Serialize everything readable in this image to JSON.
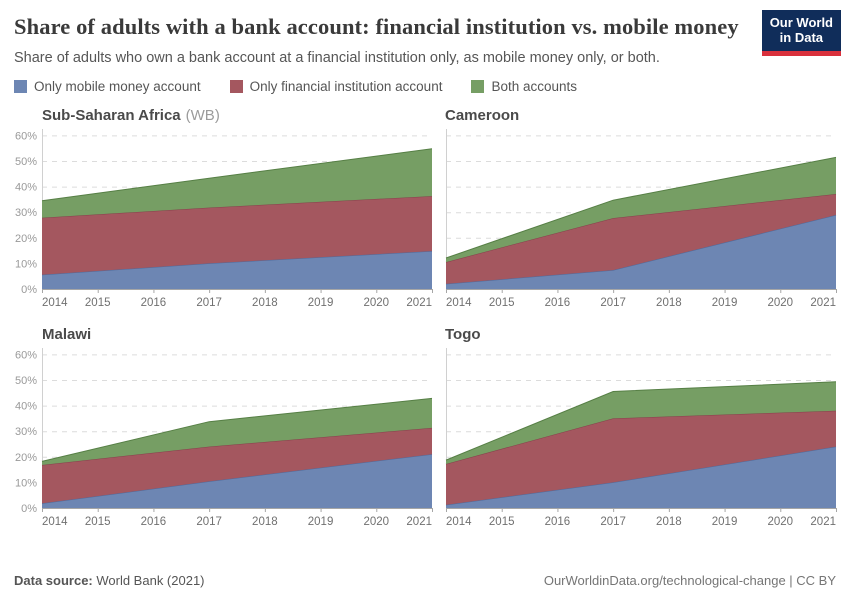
{
  "header": {
    "title": "Share of adults with a bank account: financial institution vs. mobile money",
    "subtitle": "Share of adults who own a bank account at a financial institution only, as mobile money only, or both."
  },
  "logo": {
    "line1": "Our World",
    "line2": "in Data"
  },
  "colors": {
    "mobile_fill": "#6d86b3",
    "mobile_stroke": "#4e6a9c",
    "fi_fill": "#a4575f",
    "fi_stroke": "#86404b",
    "both_fill": "#769e64",
    "both_stroke": "#567f45",
    "gridline": "#dcdcdc",
    "axis": "#a6a6a6",
    "axis_left": "#d0d0d0",
    "y_tick_text": "#999999",
    "x_tick_text": "#707070",
    "logo_bg": "#102d5a",
    "logo_bar": "#d9303c"
  },
  "legend": [
    {
      "id": "mobile",
      "label": "Only mobile money account",
      "color": "#6d86b3",
      "stroke": "#4e6a9c"
    },
    {
      "id": "fi",
      "label": "Only financial institution account",
      "color": "#a4575f",
      "stroke": "#86404b"
    },
    {
      "id": "both",
      "label": "Both accounts",
      "color": "#769e64",
      "stroke": "#567f45"
    }
  ],
  "axis": {
    "x_ticks": [
      2014,
      2015,
      2016,
      2017,
      2018,
      2019,
      2020,
      2021
    ],
    "y_ticks": [
      0,
      10,
      20,
      30,
      40,
      50,
      60
    ],
    "y_suffix": "%",
    "xlim": [
      2014,
      2021
    ],
    "ylim": [
      0,
      62.5
    ],
    "grid": "dashed"
  },
  "chart_data": [
    {
      "type": "area",
      "stacked": true,
      "title": "Sub-Saharan Africa",
      "title_suffix": "(WB)",
      "years": [
        2014,
        2017,
        2021
      ],
      "series": [
        {
          "name": "Only mobile money account",
          "values": [
            5.6,
            10.0,
            14.8
          ]
        },
        {
          "name": "Only financial institution account",
          "values": [
            22.2,
            21.8,
            21.5
          ]
        },
        {
          "name": "Both accounts",
          "values": [
            6.7,
            11.5,
            18.5
          ]
        }
      ]
    },
    {
      "type": "area",
      "stacked": true,
      "title": "Cameroon",
      "title_suffix": "",
      "years": [
        2014,
        2017,
        2021
      ],
      "series": [
        {
          "name": "Only mobile money account",
          "values": [
            2.0,
            7.4,
            28.9
          ]
        },
        {
          "name": "Only financial institution account",
          "values": [
            8.5,
            20.3,
            8.2
          ]
        },
        {
          "name": "Both accounts",
          "values": [
            1.6,
            7.0,
            14.3
          ]
        }
      ]
    },
    {
      "type": "area",
      "stacked": true,
      "title": "Malawi",
      "title_suffix": "",
      "years": [
        2014,
        2017,
        2021
      ],
      "series": [
        {
          "name": "Only mobile money account",
          "values": [
            1.8,
            10.4,
            21.0
          ]
        },
        {
          "name": "Only financial institution account",
          "values": [
            15.0,
            13.6,
            10.3
          ]
        },
        {
          "name": "Both accounts",
          "values": [
            1.4,
            9.7,
            11.5
          ]
        }
      ]
    },
    {
      "type": "area",
      "stacked": true,
      "title": "Togo",
      "title_suffix": "",
      "years": [
        2014,
        2017,
        2021
      ],
      "series": [
        {
          "name": "Only mobile money account",
          "values": [
            1.2,
            10.0,
            24.0
          ]
        },
        {
          "name": "Only financial institution account",
          "values": [
            16.0,
            25.0,
            14.0
          ]
        },
        {
          "name": "Both accounts",
          "values": [
            1.5,
            10.5,
            11.3
          ]
        }
      ]
    }
  ],
  "footer": {
    "source_prefix": "Data source:",
    "source_value": " World Bank (2021)",
    "link": "OurWorldinData.org/technological-change | CC BY"
  }
}
